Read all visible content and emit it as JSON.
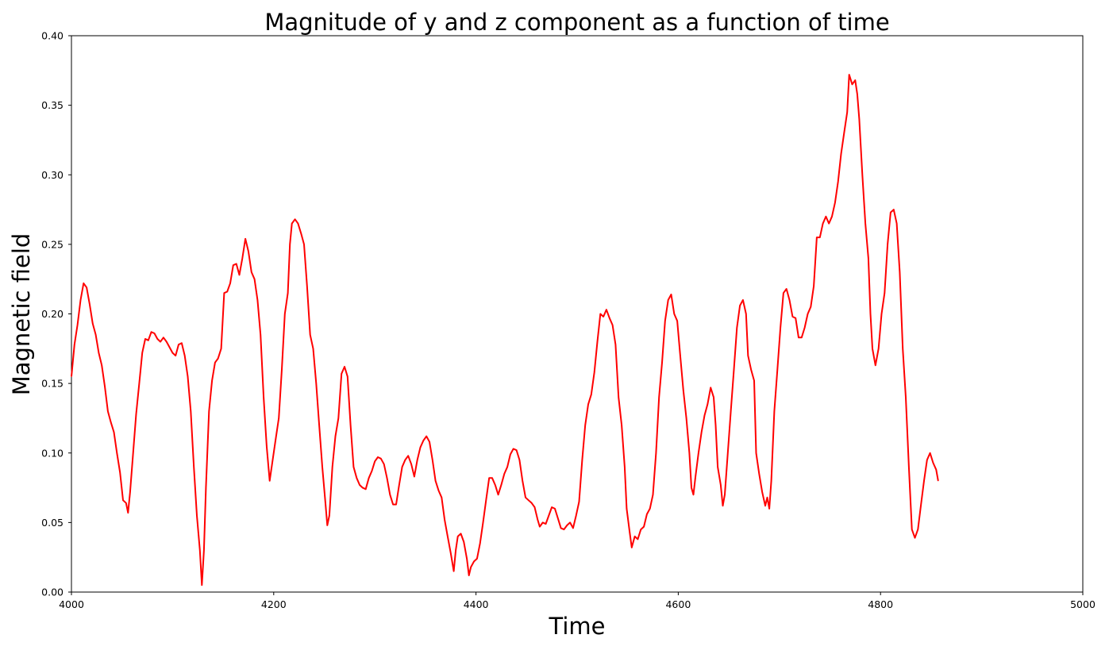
{
  "chart_data": {
    "type": "line",
    "title": "Magnitude of y and z component as a  function of time",
    "xlabel": "Time",
    "ylabel": "Magnetic field",
    "xlim": [
      4000,
      5000
    ],
    "ylim": [
      0.0,
      0.4
    ],
    "x_ticks": [
      "4000",
      "4200",
      "4400",
      "4600",
      "4800",
      "5000"
    ],
    "y_ticks": [
      "0.00",
      "0.05",
      "0.10",
      "0.15",
      "0.20",
      "0.25",
      "0.30",
      "0.35",
      "0.40"
    ],
    "grid": false,
    "legend": "none",
    "series": [
      {
        "color": "#ff0000",
        "points": [
          [
            4000,
            0.155
          ],
          [
            4003,
            0.178
          ],
          [
            4006,
            0.192
          ],
          [
            4009,
            0.21
          ],
          [
            4012,
            0.222
          ],
          [
            4015,
            0.219
          ],
          [
            4018,
            0.207
          ],
          [
            4021,
            0.193
          ],
          [
            4024,
            0.185
          ],
          [
            4027,
            0.172
          ],
          [
            4030,
            0.163
          ],
          [
            4033,
            0.148
          ],
          [
            4036,
            0.13
          ],
          [
            4039,
            0.122
          ],
          [
            4042,
            0.115
          ],
          [
            4045,
            0.1
          ],
          [
            4048,
            0.086
          ],
          [
            4051,
            0.066
          ],
          [
            4054,
            0.064
          ],
          [
            4056,
            0.057
          ],
          [
            4058,
            0.072
          ],
          [
            4061,
            0.1
          ],
          [
            4064,
            0.128
          ],
          [
            4067,
            0.15
          ],
          [
            4070,
            0.172
          ],
          [
            4073,
            0.182
          ],
          [
            4076,
            0.181
          ],
          [
            4079,
            0.187
          ],
          [
            4082,
            0.186
          ],
          [
            4085,
            0.182
          ],
          [
            4088,
            0.18
          ],
          [
            4091,
            0.183
          ],
          [
            4094,
            0.18
          ],
          [
            4097,
            0.176
          ],
          [
            4100,
            0.172
          ],
          [
            4103,
            0.17
          ],
          [
            4106,
            0.178
          ],
          [
            4109,
            0.179
          ],
          [
            4112,
            0.17
          ],
          [
            4115,
            0.155
          ],
          [
            4118,
            0.13
          ],
          [
            4121,
            0.09
          ],
          [
            4124,
            0.055
          ],
          [
            4127,
            0.03
          ],
          [
            4129,
            0.005
          ],
          [
            4131,
            0.03
          ],
          [
            4133,
            0.075
          ],
          [
            4136,
            0.13
          ],
          [
            4139,
            0.152
          ],
          [
            4142,
            0.165
          ],
          [
            4145,
            0.168
          ],
          [
            4148,
            0.175
          ],
          [
            4151,
            0.215
          ],
          [
            4154,
            0.216
          ],
          [
            4157,
            0.222
          ],
          [
            4160,
            0.235
          ],
          [
            4163,
            0.236
          ],
          [
            4166,
            0.228
          ],
          [
            4169,
            0.24
          ],
          [
            4172,
            0.254
          ],
          [
            4175,
            0.245
          ],
          [
            4178,
            0.23
          ],
          [
            4181,
            0.225
          ],
          [
            4184,
            0.21
          ],
          [
            4187,
            0.185
          ],
          [
            4190,
            0.14
          ],
          [
            4193,
            0.105
          ],
          [
            4196,
            0.08
          ],
          [
            4199,
            0.095
          ],
          [
            4202,
            0.11
          ],
          [
            4205,
            0.125
          ],
          [
            4208,
            0.16
          ],
          [
            4211,
            0.2
          ],
          [
            4214,
            0.215
          ],
          [
            4216,
            0.25
          ],
          [
            4218,
            0.265
          ],
          [
            4221,
            0.268
          ],
          [
            4224,
            0.265
          ],
          [
            4227,
            0.258
          ],
          [
            4230,
            0.25
          ],
          [
            4233,
            0.22
          ],
          [
            4236,
            0.185
          ],
          [
            4239,
            0.175
          ],
          [
            4242,
            0.15
          ],
          [
            4245,
            0.12
          ],
          [
            4248,
            0.09
          ],
          [
            4251,
            0.065
          ],
          [
            4253,
            0.048
          ],
          [
            4255,
            0.055
          ],
          [
            4258,
            0.09
          ],
          [
            4261,
            0.112
          ],
          [
            4264,
            0.125
          ],
          [
            4267,
            0.157
          ],
          [
            4270,
            0.162
          ],
          [
            4273,
            0.155
          ],
          [
            4276,
            0.12
          ],
          [
            4279,
            0.09
          ],
          [
            4282,
            0.082
          ],
          [
            4285,
            0.077
          ],
          [
            4288,
            0.075
          ],
          [
            4291,
            0.074
          ],
          [
            4294,
            0.082
          ],
          [
            4297,
            0.087
          ],
          [
            4300,
            0.094
          ],
          [
            4303,
            0.097
          ],
          [
            4306,
            0.096
          ],
          [
            4309,
            0.092
          ],
          [
            4312,
            0.082
          ],
          [
            4315,
            0.07
          ],
          [
            4318,
            0.063
          ],
          [
            4321,
            0.063
          ],
          [
            4324,
            0.077
          ],
          [
            4327,
            0.09
          ],
          [
            4330,
            0.095
          ],
          [
            4333,
            0.098
          ],
          [
            4336,
            0.092
          ],
          [
            4339,
            0.083
          ],
          [
            4342,
            0.095
          ],
          [
            4345,
            0.104
          ],
          [
            4348,
            0.109
          ],
          [
            4351,
            0.112
          ],
          [
            4354,
            0.108
          ],
          [
            4357,
            0.095
          ],
          [
            4360,
            0.08
          ],
          [
            4363,
            0.073
          ],
          [
            4366,
            0.068
          ],
          [
            4369,
            0.052
          ],
          [
            4372,
            0.04
          ],
          [
            4375,
            0.028
          ],
          [
            4378,
            0.015
          ],
          [
            4380,
            0.03
          ],
          [
            4382,
            0.04
          ],
          [
            4385,
            0.042
          ],
          [
            4388,
            0.036
          ],
          [
            4391,
            0.024
          ],
          [
            4393,
            0.012
          ],
          [
            4395,
            0.018
          ],
          [
            4398,
            0.022
          ],
          [
            4401,
            0.024
          ],
          [
            4404,
            0.035
          ],
          [
            4407,
            0.05
          ],
          [
            4410,
            0.066
          ],
          [
            4413,
            0.082
          ],
          [
            4416,
            0.082
          ],
          [
            4419,
            0.077
          ],
          [
            4422,
            0.07
          ],
          [
            4425,
            0.077
          ],
          [
            4428,
            0.085
          ],
          [
            4431,
            0.09
          ],
          [
            4434,
            0.099
          ],
          [
            4437,
            0.103
          ],
          [
            4440,
            0.102
          ],
          [
            4443,
            0.095
          ],
          [
            4446,
            0.08
          ],
          [
            4449,
            0.068
          ],
          [
            4452,
            0.066
          ],
          [
            4455,
            0.064
          ],
          [
            4458,
            0.061
          ],
          [
            4461,
            0.052
          ],
          [
            4463,
            0.047
          ],
          [
            4466,
            0.05
          ],
          [
            4469,
            0.049
          ],
          [
            4472,
            0.055
          ],
          [
            4475,
            0.061
          ],
          [
            4478,
            0.06
          ],
          [
            4481,
            0.053
          ],
          [
            4484,
            0.046
          ],
          [
            4487,
            0.045
          ],
          [
            4490,
            0.048
          ],
          [
            4493,
            0.05
          ],
          [
            4496,
            0.046
          ],
          [
            4499,
            0.055
          ],
          [
            4502,
            0.065
          ],
          [
            4505,
            0.095
          ],
          [
            4508,
            0.12
          ],
          [
            4511,
            0.135
          ],
          [
            4514,
            0.142
          ],
          [
            4517,
            0.158
          ],
          [
            4520,
            0.18
          ],
          [
            4523,
            0.2
          ],
          [
            4526,
            0.198
          ],
          [
            4529,
            0.203
          ],
          [
            4532,
            0.197
          ],
          [
            4535,
            0.192
          ],
          [
            4538,
            0.178
          ],
          [
            4541,
            0.14
          ],
          [
            4544,
            0.12
          ],
          [
            4547,
            0.09
          ],
          [
            4549,
            0.06
          ],
          [
            4552,
            0.043
          ],
          [
            4554,
            0.032
          ],
          [
            4557,
            0.04
          ],
          [
            4560,
            0.038
          ],
          [
            4563,
            0.045
          ],
          [
            4566,
            0.047
          ],
          [
            4569,
            0.056
          ],
          [
            4572,
            0.06
          ],
          [
            4575,
            0.07
          ],
          [
            4578,
            0.1
          ],
          [
            4581,
            0.14
          ],
          [
            4584,
            0.165
          ],
          [
            4587,
            0.195
          ],
          [
            4590,
            0.21
          ],
          [
            4593,
            0.214
          ],
          [
            4596,
            0.2
          ],
          [
            4599,
            0.195
          ],
          [
            4602,
            0.17
          ],
          [
            4605,
            0.145
          ],
          [
            4608,
            0.125
          ],
          [
            4611,
            0.1
          ],
          [
            4613,
            0.075
          ],
          [
            4615,
            0.07
          ],
          [
            4617,
            0.083
          ],
          [
            4620,
            0.1
          ],
          [
            4623,
            0.115
          ],
          [
            4626,
            0.127
          ],
          [
            4629,
            0.135
          ],
          [
            4632,
            0.147
          ],
          [
            4635,
            0.14
          ],
          [
            4637,
            0.12
          ],
          [
            4639,
            0.09
          ],
          [
            4642,
            0.077
          ],
          [
            4644,
            0.062
          ],
          [
            4646,
            0.07
          ],
          [
            4649,
            0.1
          ],
          [
            4652,
            0.13
          ],
          [
            4655,
            0.16
          ],
          [
            4658,
            0.19
          ],
          [
            4661,
            0.206
          ],
          [
            4664,
            0.21
          ],
          [
            4667,
            0.2
          ],
          [
            4669,
            0.17
          ],
          [
            4672,
            0.16
          ],
          [
            4675,
            0.152
          ],
          [
            4677,
            0.1
          ],
          [
            4680,
            0.085
          ],
          [
            4683,
            0.072
          ],
          [
            4686,
            0.062
          ],
          [
            4688,
            0.068
          ],
          [
            4690,
            0.06
          ],
          [
            4692,
            0.08
          ],
          [
            4695,
            0.13
          ],
          [
            4698,
            0.16
          ],
          [
            4701,
            0.19
          ],
          [
            4704,
            0.215
          ],
          [
            4707,
            0.218
          ],
          [
            4710,
            0.21
          ],
          [
            4713,
            0.198
          ],
          [
            4716,
            0.197
          ],
          [
            4719,
            0.183
          ],
          [
            4722,
            0.183
          ],
          [
            4725,
            0.19
          ],
          [
            4728,
            0.2
          ],
          [
            4731,
            0.205
          ],
          [
            4734,
            0.22
          ],
          [
            4737,
            0.255
          ],
          [
            4740,
            0.255
          ],
          [
            4743,
            0.265
          ],
          [
            4746,
            0.27
          ],
          [
            4749,
            0.265
          ],
          [
            4752,
            0.27
          ],
          [
            4755,
            0.28
          ],
          [
            4758,
            0.295
          ],
          [
            4761,
            0.315
          ],
          [
            4764,
            0.33
          ],
          [
            4767,
            0.345
          ],
          [
            4769,
            0.372
          ],
          [
            4772,
            0.365
          ],
          [
            4775,
            0.368
          ],
          [
            4777,
            0.358
          ],
          [
            4779,
            0.34
          ],
          [
            4782,
            0.3
          ],
          [
            4785,
            0.265
          ],
          [
            4788,
            0.24
          ],
          [
            4790,
            0.2
          ],
          [
            4792,
            0.175
          ],
          [
            4795,
            0.163
          ],
          [
            4798,
            0.175
          ],
          [
            4801,
            0.2
          ],
          [
            4804,
            0.215
          ],
          [
            4807,
            0.25
          ],
          [
            4810,
            0.273
          ],
          [
            4813,
            0.275
          ],
          [
            4816,
            0.265
          ],
          [
            4819,
            0.23
          ],
          [
            4822,
            0.175
          ],
          [
            4825,
            0.14
          ],
          [
            4828,
            0.09
          ],
          [
            4831,
            0.045
          ],
          [
            4834,
            0.039
          ],
          [
            4837,
            0.045
          ],
          [
            4840,
            0.063
          ],
          [
            4843,
            0.08
          ],
          [
            4846,
            0.095
          ],
          [
            4849,
            0.1
          ],
          [
            4852,
            0.093
          ],
          [
            4855,
            0.088
          ],
          [
            4857,
            0.08
          ]
        ]
      }
    ]
  }
}
